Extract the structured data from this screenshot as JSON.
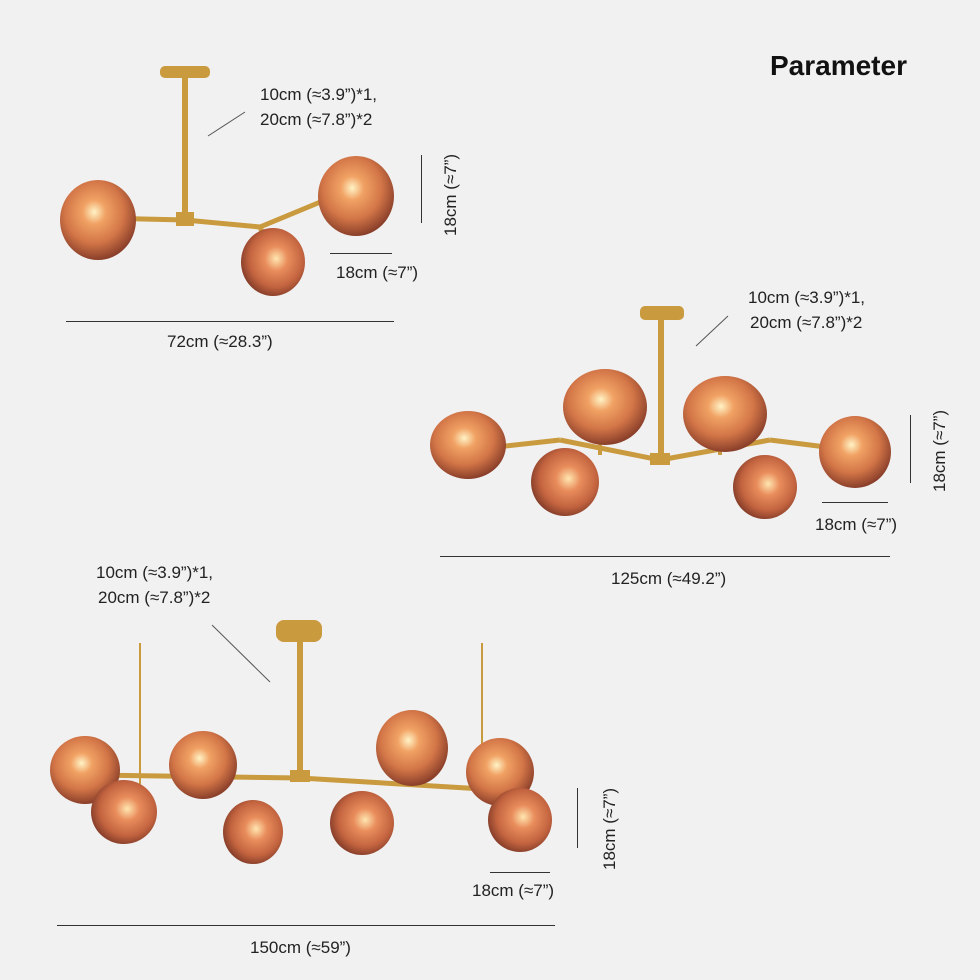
{
  "title": "Parameter",
  "colors": {
    "background": "#f1f1f1",
    "brass": "#c99a3e",
    "glass": "#d9774c"
  },
  "lamp_small": {
    "bulb_spec_1": "10cm (≈3.9”)*1,",
    "bulb_spec_2": "20cm (≈7.8”)*2",
    "height": "18cm (≈7”)",
    "width_small": "18cm (≈7”)",
    "total_width": "72cm (≈28.3”)"
  },
  "lamp_medium": {
    "bulb_spec_1": "10cm (≈3.9”)*1,",
    "bulb_spec_2": "20cm (≈7.8”)*2",
    "height": "18cm (≈7”)",
    "width_small": "18cm (≈7”)",
    "total_width": "125cm (≈49.2”)"
  },
  "lamp_large": {
    "bulb_spec_1": "10cm (≈3.9”)*1,",
    "bulb_spec_2": "20cm (≈7.8”)*2",
    "height": "18cm (≈7”)",
    "width_small": "18cm (≈7”)",
    "total_width": "150cm (≈59”)"
  }
}
